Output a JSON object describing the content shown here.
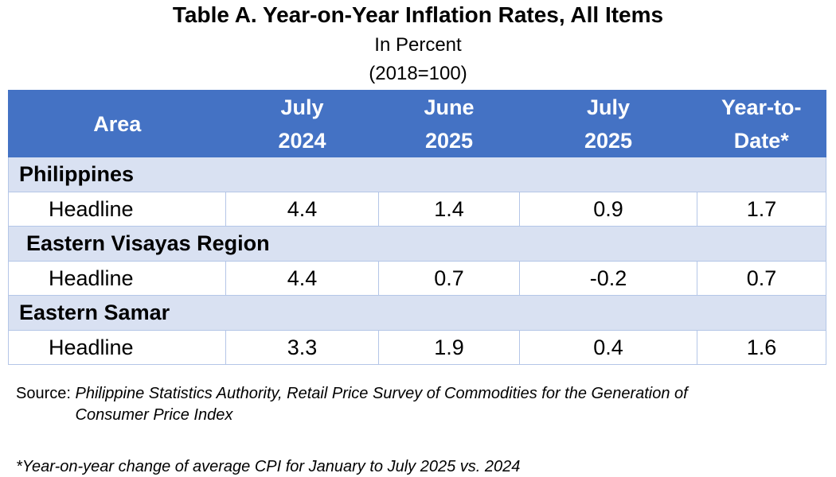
{
  "title": "Table A. Year-on-Year Inflation Rates, All Items",
  "subtitle_unit": "In Percent",
  "subtitle_base": "(2018=100)",
  "table": {
    "headers": [
      {
        "line1": "Area",
        "line2": ""
      },
      {
        "line1": "July",
        "line2": "2024"
      },
      {
        "line1": "June",
        "line2": "2025"
      },
      {
        "line1": "July",
        "line2": "2025"
      },
      {
        "line1": "Year-to-",
        "line2": "Date*"
      }
    ],
    "groups": [
      {
        "area": "Philippines",
        "rows": [
          {
            "label": "Headline",
            "values": [
              "4.4",
              "1.4",
              "0.9",
              "1.7"
            ]
          }
        ]
      },
      {
        "area": "Eastern Visayas Region",
        "rows": [
          {
            "label": "Headline",
            "values": [
              "4.4",
              "0.7",
              "-0.2",
              "0.7"
            ]
          }
        ]
      },
      {
        "area": "Eastern Samar",
        "rows": [
          {
            "label": "Headline",
            "values": [
              "3.3",
              "1.9",
              "0.4",
              "1.6"
            ]
          }
        ]
      }
    ]
  },
  "source_label": "Source:",
  "source_text": "Philippine Statistics Authority, Retail Price Survey of Commodities for the Generation of Consumer Price Index",
  "footnote": "*Year-on-year change of average CPI for January to July 2025 vs. 2024",
  "colors": {
    "header_bg": "#4472c4",
    "region_bg": "#d9e1f2",
    "grid": "#b4c6e7"
  }
}
